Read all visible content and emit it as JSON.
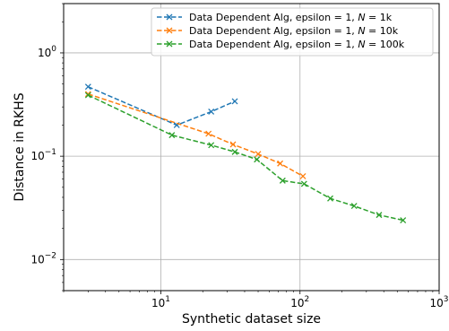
{
  "chart_data": {
    "type": "line",
    "xlabel": "Synthetic dataset size",
    "ylabel": "Distance in RKHS",
    "x_scale": "log",
    "y_scale": "log",
    "xlim": [
      2,
      1000
    ],
    "ylim": [
      0.005,
      3
    ],
    "grid": true,
    "legend_position": "top-right",
    "x_ticks": [
      {
        "base": "10",
        "exp": "1",
        "value": 10
      },
      {
        "base": "10",
        "exp": "2",
        "value": 100
      },
      {
        "base": "10",
        "exp": "3",
        "value": 1000
      }
    ],
    "y_ticks": [
      {
        "base": "10",
        "exp": "−2",
        "value": 0.01
      },
      {
        "base": "10",
        "exp": "−1",
        "value": 0.1
      },
      {
        "base": "10",
        "exp": "0",
        "value": 1
      }
    ],
    "series": [
      {
        "label_prefix": "Data Dependent Alg, epsilon = 1, ",
        "label_var": "N",
        "label_suffix": " = 1k",
        "color": "#1f77b4",
        "x": [
          3,
          13,
          23,
          34
        ],
        "y": [
          0.47,
          0.2,
          0.27,
          0.34
        ]
      },
      {
        "label_prefix": "Data Dependent Alg, epsilon = 1, ",
        "label_var": "N",
        "label_suffix": " = 10k",
        "color": "#ff7f0e",
        "x": [
          3,
          22,
          33,
          50,
          72,
          105
        ],
        "y": [
          0.4,
          0.165,
          0.13,
          0.105,
          0.085,
          0.064
        ]
      },
      {
        "label_prefix": "Data Dependent Alg, epsilon = 1, ",
        "label_var": "N",
        "label_suffix": " = 100k",
        "color": "#2ca02c",
        "x": [
          3,
          12,
          23,
          34,
          49,
          75,
          107,
          165,
          245,
          370,
          550
        ],
        "y": [
          0.39,
          0.16,
          0.128,
          0.11,
          0.093,
          0.058,
          0.054,
          0.039,
          0.033,
          0.027,
          0.024
        ]
      }
    ]
  }
}
